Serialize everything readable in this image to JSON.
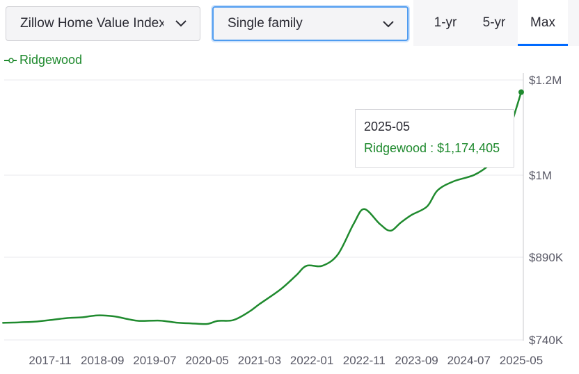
{
  "controls": {
    "metric_select": {
      "value": "Zillow Home Value Index"
    },
    "type_select": {
      "value": "Single family"
    },
    "tabs": [
      {
        "label": "1-yr"
      },
      {
        "label": "5-yr"
      },
      {
        "label": "Max",
        "selected": true
      }
    ]
  },
  "colors": {
    "series": "#1f8a2e",
    "accent": "#006aff",
    "focus": "#4f9cf0"
  },
  "tooltip": {
    "date": "2025-05",
    "series_name": "Ridgewood",
    "separator": " : ",
    "value": "$1,174,405"
  },
  "chart_data": {
    "type": "line",
    "title": "",
    "xlabel": "",
    "ylabel": "",
    "x_ticks": [
      "2017-11",
      "2018-09",
      "2019-07",
      "2020-05",
      "2021-03",
      "2022-01",
      "2022-11",
      "2023-09",
      "2024-07",
      "2025-05"
    ],
    "y_ticks": [
      {
        "value": 1200000,
        "label": "$1.2M"
      },
      {
        "value": 1000000,
        "label": "$1M"
      },
      {
        "value": 890000,
        "label": "$890K"
      },
      {
        "value": 740000,
        "label": "$740K"
      }
    ],
    "grid": true,
    "legend": "top-left",
    "series": [
      {
        "name": "Ridgewood",
        "color": "#1f8a2e",
        "points": [
          [
            "2017-02",
            771000
          ],
          [
            "2017-04",
            771500
          ],
          [
            "2017-08",
            773000
          ],
          [
            "2017-11",
            776000
          ],
          [
            "2018-02",
            779500
          ],
          [
            "2018-05",
            781000
          ],
          [
            "2018-08",
            784500
          ],
          [
            "2018-11",
            783000
          ],
          [
            "2019-02",
            777500
          ],
          [
            "2019-04",
            774500
          ],
          [
            "2019-08",
            775000
          ],
          [
            "2019-11",
            771500
          ],
          [
            "2020-02",
            770000
          ],
          [
            "2020-05",
            769000
          ],
          [
            "2020-07",
            774500
          ],
          [
            "2020-10",
            776000
          ],
          [
            "2021-01",
            791000
          ],
          [
            "2021-03",
            805000
          ],
          [
            "2021-07",
            831500
          ],
          [
            "2021-10",
            857000
          ],
          [
            "2021-12",
            874500
          ],
          [
            "2022-03",
            874500
          ],
          [
            "2022-06",
            894000
          ],
          [
            "2022-09",
            935000
          ],
          [
            "2022-11",
            954500
          ],
          [
            "2023-02",
            934500
          ],
          [
            "2023-04",
            925500
          ],
          [
            "2023-06",
            936500
          ],
          [
            "2023-08",
            946500
          ],
          [
            "2023-11",
            958000
          ],
          [
            "2024-01",
            979500
          ],
          [
            "2024-04",
            991500
          ],
          [
            "2024-08",
            1000500
          ],
          [
            "2024-11",
            1022500
          ],
          [
            "2025-01",
            1050000
          ],
          [
            "2025-02",
            1069000
          ],
          [
            "2025-05",
            1174405
          ]
        ]
      }
    ],
    "tooltip_point": {
      "x": "2025-05",
      "y": 1174405
    }
  }
}
